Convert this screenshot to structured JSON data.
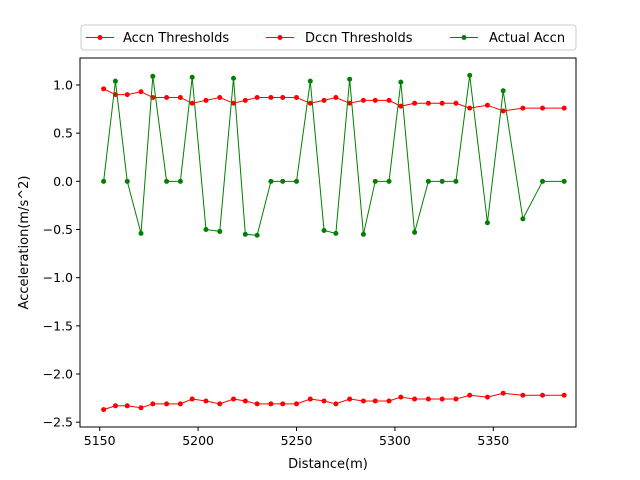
{
  "chart_data": {
    "type": "line",
    "title": "",
    "xlabel": "Distance(m)",
    "ylabel": "Acceleration(m/s^2)",
    "xlim": [
      5140,
      5392
    ],
    "ylim": [
      -2.55,
      1.28
    ],
    "xticks": [
      5150,
      5200,
      5250,
      5300,
      5350
    ],
    "yticks": [
      -2.5,
      -2.0,
      -1.5,
      -1.0,
      -0.5,
      0.0,
      0.5,
      1.0
    ],
    "xtick_labels": [
      "5150",
      "5200",
      "5250",
      "5300",
      "5350"
    ],
    "ytick_labels": [
      "−2.5",
      "−2.0",
      "−1.5",
      "−1.0",
      "−0.5",
      "0.0",
      "0.5",
      "1.0"
    ],
    "grid": false,
    "legend_position": "top-center",
    "series": [
      {
        "name": "Accn Thresholds",
        "color": "#ff0000",
        "marker": "circle",
        "x": [
          5152,
          5158,
          5164,
          5171,
          5177,
          5184,
          5191,
          5197,
          5204,
          5211,
          5218,
          5224,
          5230,
          5237,
          5243,
          5250,
          5257,
          5264,
          5270,
          5277,
          5284,
          5290,
          5297,
          5303,
          5310,
          5317,
          5324,
          5331,
          5338,
          5347,
          5355,
          5365,
          5375,
          5386
        ],
        "y": [
          0.96,
          0.9,
          0.9,
          0.93,
          0.87,
          0.87,
          0.87,
          0.81,
          0.84,
          0.87,
          0.81,
          0.84,
          0.87,
          0.87,
          0.87,
          0.87,
          0.81,
          0.84,
          0.87,
          0.81,
          0.84,
          0.84,
          0.84,
          0.78,
          0.81,
          0.81,
          0.81,
          0.81,
          0.76,
          0.79,
          0.73,
          0.76,
          0.76,
          0.76
        ]
      },
      {
        "name": "Dccn Thresholds",
        "color": "#ff0000",
        "marker": "circle",
        "x": [
          5152,
          5158,
          5164,
          5171,
          5177,
          5184,
          5191,
          5197,
          5204,
          5211,
          5218,
          5224,
          5230,
          5237,
          5243,
          5250,
          5257,
          5264,
          5270,
          5277,
          5284,
          5290,
          5297,
          5303,
          5310,
          5317,
          5324,
          5331,
          5338,
          5347,
          5355,
          5365,
          5375,
          5386
        ],
        "y": [
          -2.37,
          -2.33,
          -2.33,
          -2.35,
          -2.31,
          -2.31,
          -2.31,
          -2.26,
          -2.28,
          -2.31,
          -2.26,
          -2.28,
          -2.31,
          -2.31,
          -2.31,
          -2.31,
          -2.26,
          -2.28,
          -2.31,
          -2.26,
          -2.28,
          -2.28,
          -2.28,
          -2.24,
          -2.26,
          -2.26,
          -2.26,
          -2.26,
          -2.22,
          -2.24,
          -2.2,
          -2.22,
          -2.22,
          -2.22
        ]
      },
      {
        "name": "Actual Accn",
        "color": "#008000",
        "marker": "circle",
        "x": [
          5152,
          5158,
          5164,
          5171,
          5177,
          5184,
          5191,
          5197,
          5204,
          5211,
          5218,
          5224,
          5230,
          5237,
          5243,
          5250,
          5257,
          5264,
          5270,
          5277,
          5284,
          5290,
          5297,
          5303,
          5310,
          5317,
          5324,
          5331,
          5338,
          5347,
          5355,
          5365,
          5375,
          5386
        ],
        "y": [
          0.0,
          1.04,
          0.0,
          -0.54,
          1.09,
          0.0,
          0.0,
          1.08,
          -0.5,
          -0.52,
          1.07,
          -0.55,
          -0.56,
          0.0,
          0.0,
          0.0,
          1.04,
          -0.51,
          -0.54,
          1.06,
          -0.55,
          0.0,
          0.0,
          1.03,
          -0.53,
          0.0,
          0.0,
          0.0,
          1.1,
          -0.43,
          0.94,
          -0.39,
          0.0,
          0.0
        ]
      }
    ]
  }
}
